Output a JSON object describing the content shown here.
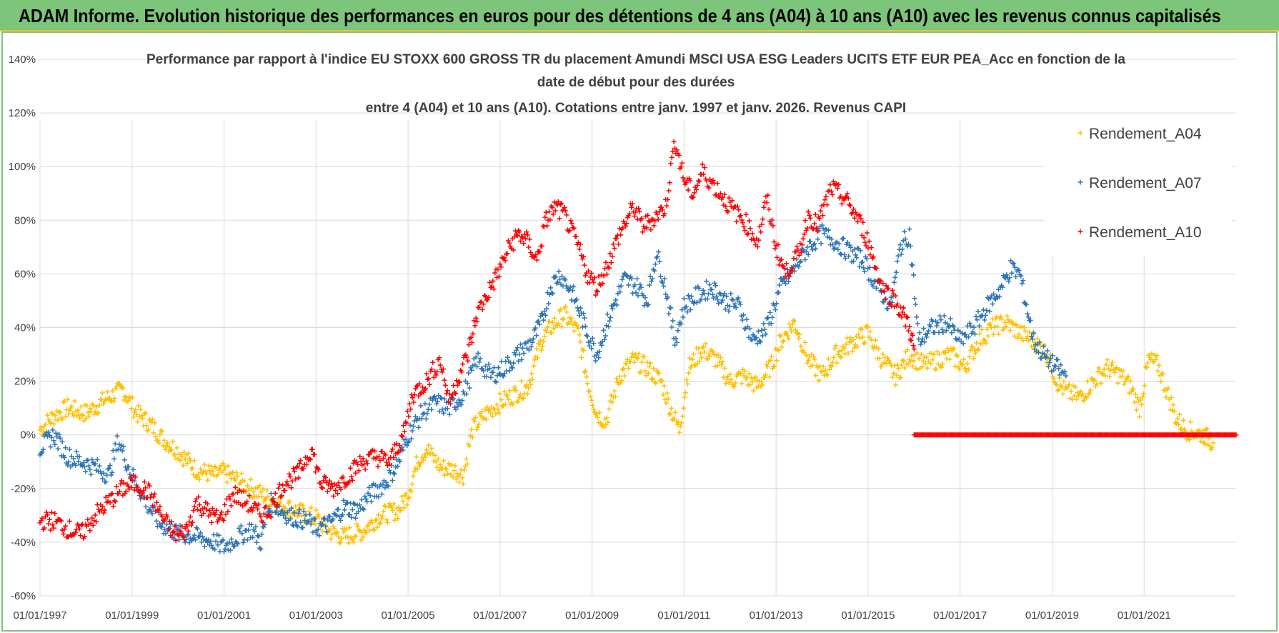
{
  "banner": {
    "title": "ADAM Informe. Evolution historique des performances en euros pour des détentions de 4 ans (A04) à 10 ans (A10) avec les revenus connus capitalisés"
  },
  "colors": {
    "banner": "#7dc57b",
    "banner_border": "#f1c232",
    "A04": "#ffc000",
    "A07": "#2e75b6",
    "A10": "#ff0000",
    "grid": "#d9d9d9",
    "text": "#404040"
  },
  "chart_data": {
    "type": "scatter",
    "marker": "+",
    "title_lines": [
      "Performance par rapport à l'indice EU STOXX 600 GROSS TR  du placement Amundi MSCI USA ESG Leaders UCITS ETF EUR PEA_Acc en fonction de la",
      "date de début pour des durées",
      "entre 4 (A04) et 10 ans (A10). Cotations entre janv. 1997 et janv. 2026. Revenus CAPI"
    ],
    "xlabel": "",
    "ylabel": "",
    "x_ticks": [
      "01/01/1997",
      "01/01/1999",
      "01/01/2001",
      "01/01/2003",
      "01/01/2005",
      "01/01/2007",
      "01/01/2009",
      "01/01/2011",
      "01/01/2013",
      "01/01/2015",
      "01/01/2017",
      "01/01/2019",
      "01/01/2021"
    ],
    "xlim": [
      1997.0,
      2023.0
    ],
    "y_ticks": [
      "140%",
      "120%",
      "100%",
      "80%",
      "60%",
      "40%",
      "20%",
      "0%",
      "-20%",
      "-40%",
      "-60%"
    ],
    "ylim": [
      -60,
      140
    ],
    "y_unit": "%",
    "legend": [
      "Rendement_A04",
      "Rendement_A07",
      "Rendement_A10"
    ],
    "legend_position": "top-right",
    "series": [
      {
        "name": "Rendement_A04",
        "x": [
          1997.0,
          1997.3,
          1997.6,
          1998.0,
          1998.4,
          1998.8,
          1999.1,
          1999.4,
          1999.7,
          2000.0,
          2000.4,
          2000.8,
          2001.0,
          2001.4,
          2001.8,
          2002.0,
          2002.4,
          2002.8,
          2003.0,
          2003.3,
          2003.6,
          2004.0,
          2004.4,
          2004.8,
          2005.0,
          2005.2,
          2005.4,
          2005.7,
          2006.0,
          2006.2,
          2006.4,
          2006.7,
          2007.0,
          2007.3,
          2007.6,
          2007.9,
          2008.1,
          2008.4,
          2008.7,
          2008.9,
          2009.1,
          2009.3,
          2009.6,
          2009.9,
          2010.2,
          2010.5,
          2010.7,
          2010.9,
          2011.1,
          2011.4,
          2011.7,
          2012.0,
          2012.3,
          2012.6,
          2012.9,
          2013.1,
          2013.4,
          2013.7,
          2014.0,
          2014.3,
          2014.7,
          2015.0,
          2015.3,
          2015.6,
          2015.9,
          2016.2,
          2016.5,
          2016.8,
          2017.1,
          2017.4,
          2017.7,
          2018.0,
          2018.3,
          2018.6,
          2018.9,
          2019.1,
          2019.3,
          2019.6,
          2019.9,
          2020.2,
          2020.5,
          2020.7,
          2020.9,
          2021.1,
          2021.3,
          2021.5,
          2021.7,
          2021.9,
          2022.1,
          2022.3,
          2022.5
        ],
        "values": [
          2,
          7,
          10,
          8,
          13,
          17,
          8,
          4,
          -2,
          -6,
          -13,
          -15,
          -14,
          -18,
          -22,
          -24,
          -27,
          -30,
          -31,
          -36,
          -38,
          -36,
          -30,
          -28,
          -22,
          -10,
          -5,
          -12,
          -13,
          -15,
          2,
          8,
          12,
          15,
          18,
          35,
          40,
          45,
          38,
          20,
          8,
          5,
          22,
          28,
          25,
          20,
          10,
          2,
          25,
          32,
          28,
          20,
          22,
          18,
          26,
          35,
          42,
          28,
          22,
          30,
          35,
          38,
          28,
          22,
          30,
          26,
          28,
          30,
          25,
          35,
          40,
          42,
          38,
          35,
          30,
          20,
          16,
          14,
          20,
          25,
          22,
          18,
          10,
          28,
          26,
          16,
          6,
          2,
          1,
          0,
          -3
        ]
      },
      {
        "name": "Rendement_A07",
        "x": [
          1997.0,
          1997.3,
          1997.6,
          1997.9,
          1998.2,
          1998.5,
          1998.7,
          1999.0,
          1999.3,
          1999.6,
          2000.0,
          2000.4,
          2000.8,
          2001.0,
          2001.3,
          2001.6,
          2001.8,
          2002.0,
          2002.4,
          2002.8,
          2003.0,
          2003.3,
          2003.6,
          2003.9,
          2004.2,
          2004.5,
          2004.8,
          2005.0,
          2005.3,
          2005.6,
          2005.9,
          2006.2,
          2006.5,
          2006.8,
          2007.1,
          2007.4,
          2007.7,
          2007.9,
          2008.1,
          2008.3,
          2008.6,
          2008.9,
          2009.1,
          2009.4,
          2009.7,
          2010.0,
          2010.2,
          2010.4,
          2010.6,
          2010.8,
          2011.0,
          2011.3,
          2011.6,
          2011.9,
          2012.2,
          2012.5,
          2012.8,
          2013.1,
          2013.4,
          2013.7,
          2014.0,
          2014.3,
          2014.6,
          2014.9,
          2015.2,
          2015.5,
          2015.7,
          2015.9,
          2016.1,
          2016.4,
          2016.7,
          2017.0,
          2017.3,
          2017.6,
          2017.9,
          2018.1,
          2018.3,
          2018.6,
          2018.9,
          2019.1,
          2019.3
        ],
        "values": [
          -5,
          0,
          -8,
          -10,
          -12,
          -15,
          -2,
          -15,
          -25,
          -33,
          -37,
          -38,
          -40,
          -42,
          -38,
          -35,
          -40,
          -25,
          -30,
          -32,
          -35,
          -33,
          -27,
          -28,
          -22,
          -18,
          -10,
          0,
          8,
          12,
          10,
          15,
          28,
          22,
          25,
          30,
          35,
          42,
          55,
          60,
          52,
          38,
          30,
          45,
          58,
          55,
          50,
          68,
          55,
          35,
          48,
          52,
          55,
          50,
          48,
          35,
          40,
          55,
          62,
          70,
          75,
          72,
          68,
          65,
          55,
          48,
          70,
          75,
          35,
          40,
          42,
          35,
          40,
          48,
          55,
          62,
          60,
          35,
          28,
          25,
          22
        ]
      },
      {
        "name": "Rendement_A10",
        "x": [
          1997.0,
          1997.3,
          1997.6,
          1997.9,
          1998.2,
          1998.5,
          1998.8,
          1999.1,
          1999.4,
          1999.7,
          2000.0,
          2000.2,
          2000.4,
          2000.6,
          2000.9,
          2001.2,
          2001.5,
          2001.8,
          2002.0,
          2002.3,
          2002.6,
          2002.9,
          2003.1,
          2003.4,
          2003.7,
          2004.0,
          2004.3,
          2004.6,
          2004.9,
          2005.1,
          2005.4,
          2005.7,
          2005.9,
          2006.1,
          2006.3,
          2006.5,
          2006.8,
          2007.0,
          2007.2,
          2007.4,
          2007.6,
          2007.8,
          2008.0,
          2008.2,
          2008.4,
          2008.7,
          2008.9,
          2009.1,
          2009.3,
          2009.6,
          2009.9,
          2010.1,
          2010.3,
          2010.6,
          2010.8,
          2011.0,
          2011.2,
          2011.4,
          2011.7,
          2012.0,
          2012.3,
          2012.6,
          2012.8,
          2013.0,
          2013.2,
          2013.5,
          2013.7,
          2013.9,
          2014.2,
          2014.5,
          2014.8,
          2015.0,
          2015.3,
          2015.6,
          2015.9,
          2016.0
        ],
        "values": [
          -32,
          -32,
          -35,
          -37,
          -30,
          -25,
          -20,
          -18,
          -22,
          -32,
          -38,
          -35,
          -25,
          -28,
          -32,
          -22,
          -25,
          -30,
          -28,
          -18,
          -15,
          -5,
          -18,
          -20,
          -15,
          -10,
          -8,
          -10,
          0,
          15,
          20,
          28,
          12,
          22,
          30,
          45,
          55,
          62,
          70,
          75,
          72,
          65,
          80,
          85,
          82,
          70,
          60,
          55,
          62,
          75,
          85,
          78,
          80,
          85,
          110,
          95,
          90,
          98,
          92,
          85,
          80,
          72,
          88,
          70,
          60,
          68,
          82,
          78,
          92,
          88,
          80,
          72,
          55,
          50,
          40,
          32
        ]
      },
      {
        "name": "Rendement_A10 (flat)",
        "x_start": 2016.0,
        "x_end": 2023.0,
        "value": 0
      }
    ]
  }
}
